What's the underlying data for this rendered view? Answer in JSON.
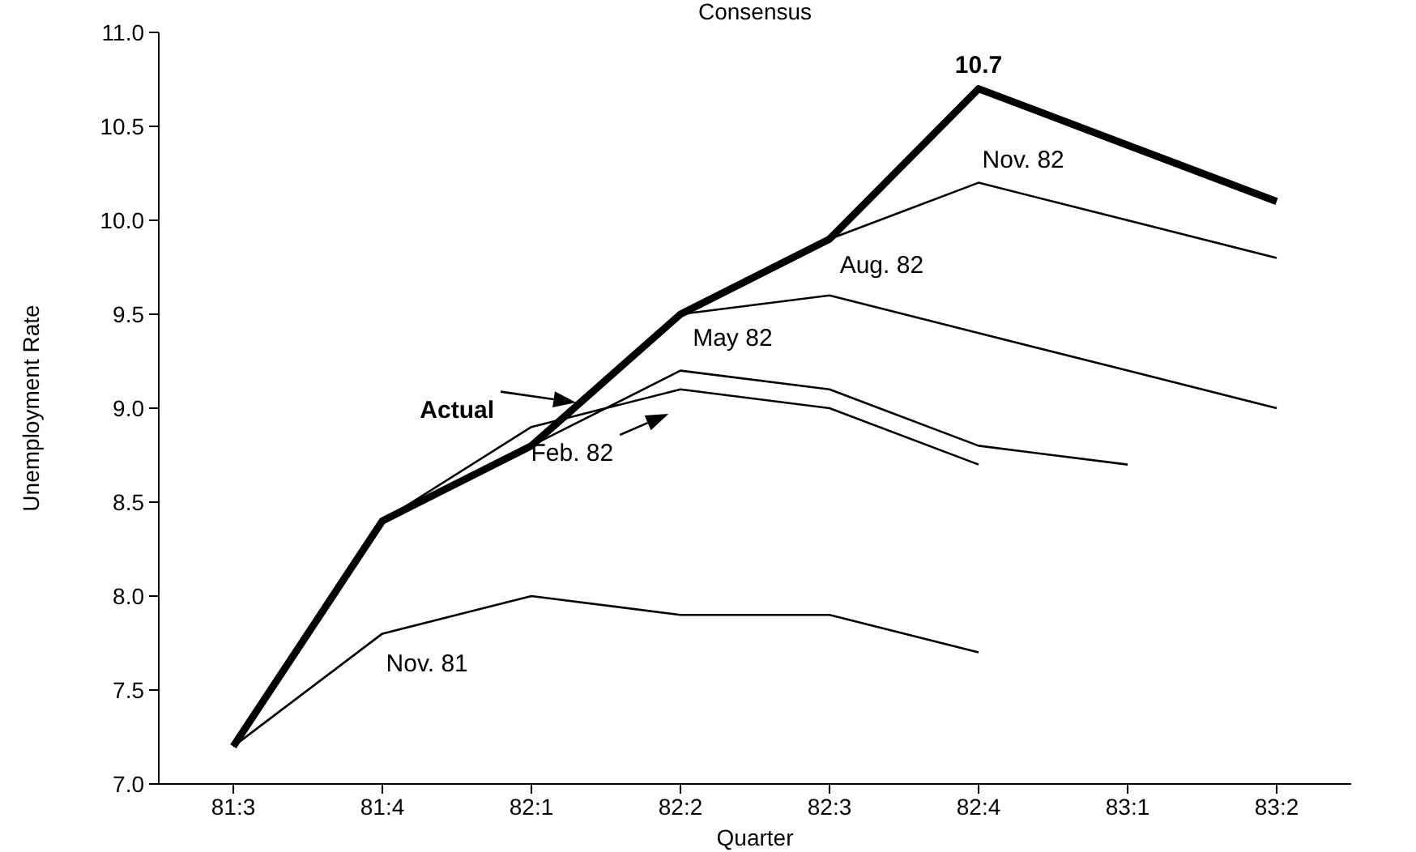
{
  "chart_data": {
    "type": "line",
    "title": "Consensus",
    "xlabel": "Quarter",
    "ylabel": "Unemployment Rate",
    "categories": [
      "81:3",
      "81:4",
      "82:1",
      "82:2",
      "82:3",
      "82:4",
      "83:1",
      "83:2"
    ],
    "ylim": [
      7.0,
      11.0
    ],
    "yticks": [
      {
        "value": 7,
        "label": "7.0"
      },
      {
        "value": 7.5,
        "label": "7.5"
      },
      {
        "value": 8,
        "label": "8.0"
      },
      {
        "value": 8.5,
        "label": "8.5"
      },
      {
        "value": 9,
        "label": "9.0"
      },
      {
        "value": 9.5,
        "label": "9.5"
      },
      {
        "value": 10,
        "label": "10.0"
      },
      {
        "value": 10.5,
        "label": "10.5"
      },
      {
        "value": 11,
        "label": "11.0"
      }
    ],
    "grid": false,
    "marker": "none",
    "series": [
      {
        "name": "Nov. 81",
        "color": "#000000",
        "values": [
          7.2,
          7.8,
          8.0,
          7.9,
          7.9,
          7.7,
          null,
          null
        ]
      },
      {
        "name": "Feb. 82",
        "color": "#000000",
        "values": [
          null,
          8.4,
          8.9,
          9.1,
          9.0,
          8.7,
          null,
          null
        ]
      },
      {
        "name": "May 82",
        "color": "#000000",
        "values": [
          null,
          null,
          8.8,
          9.2,
          9.1,
          8.8,
          8.7,
          null
        ]
      },
      {
        "name": "Aug. 82",
        "color": "#000000",
        "values": [
          null,
          null,
          null,
          9.5,
          9.6,
          9.4,
          9.2,
          9.0
        ]
      },
      {
        "name": "Nov. 82",
        "color": "#000000",
        "values": [
          null,
          null,
          null,
          null,
          9.9,
          10.2,
          10.0,
          9.8
        ]
      },
      {
        "name": "Actual",
        "color": "#000000",
        "values": [
          7.2,
          8.4,
          8.8,
          9.5,
          9.9,
          10.7,
          10.4,
          10.1
        ],
        "value_labels": [
          null,
          null,
          null,
          null,
          null,
          "10.7",
          null,
          null
        ]
      }
    ]
  }
}
